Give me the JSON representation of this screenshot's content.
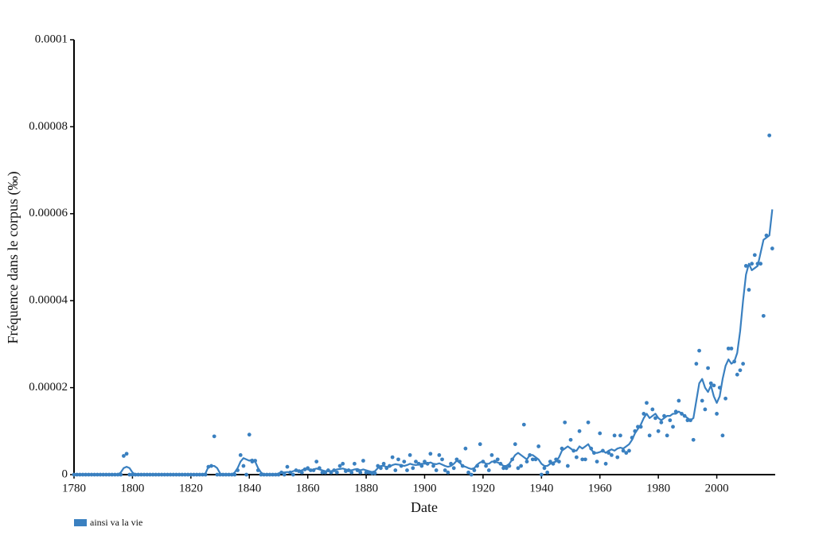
{
  "chart_data": {
    "type": "line",
    "x_label": "Date",
    "y_label": "Fréquence dans le corpus (‰)",
    "x": [
      1780,
      1781,
      1782,
      1783,
      1784,
      1785,
      1786,
      1787,
      1788,
      1789,
      1790,
      1791,
      1792,
      1793,
      1794,
      1795,
      1796,
      1797,
      1798,
      1799,
      1800,
      1801,
      1802,
      1803,
      1804,
      1805,
      1806,
      1807,
      1808,
      1809,
      1810,
      1811,
      1812,
      1813,
      1814,
      1815,
      1816,
      1817,
      1818,
      1819,
      1820,
      1821,
      1822,
      1823,
      1824,
      1825,
      1826,
      1827,
      1828,
      1829,
      1830,
      1831,
      1832,
      1833,
      1834,
      1835,
      1836,
      1837,
      1838,
      1839,
      1840,
      1841,
      1842,
      1843,
      1844,
      1845,
      1846,
      1847,
      1848,
      1849,
      1850,
      1851,
      1852,
      1853,
      1854,
      1855,
      1856,
      1857,
      1858,
      1859,
      1860,
      1861,
      1862,
      1863,
      1864,
      1865,
      1866,
      1867,
      1868,
      1869,
      1870,
      1871,
      1872,
      1873,
      1874,
      1875,
      1876,
      1877,
      1878,
      1879,
      1880,
      1881,
      1882,
      1883,
      1884,
      1885,
      1886,
      1887,
      1888,
      1889,
      1890,
      1891,
      1892,
      1893,
      1894,
      1895,
      1896,
      1897,
      1898,
      1899,
      1900,
      1901,
      1902,
      1903,
      1904,
      1905,
      1906,
      1907,
      1908,
      1909,
      1910,
      1911,
      1912,
      1913,
      1914,
      1915,
      1916,
      1917,
      1918,
      1919,
      1920,
      1921,
      1922,
      1923,
      1924,
      1925,
      1926,
      1927,
      1928,
      1929,
      1930,
      1931,
      1932,
      1933,
      1934,
      1935,
      1936,
      1937,
      1938,
      1939,
      1940,
      1941,
      1942,
      1943,
      1944,
      1945,
      1946,
      1947,
      1948,
      1949,
      1950,
      1951,
      1952,
      1953,
      1954,
      1955,
      1956,
      1957,
      1958,
      1959,
      1960,
      1961,
      1962,
      1963,
      1964,
      1965,
      1966,
      1967,
      1968,
      1969,
      1970,
      1971,
      1972,
      1973,
      1974,
      1975,
      1976,
      1977,
      1978,
      1979,
      1980,
      1981,
      1982,
      1983,
      1984,
      1985,
      1986,
      1987,
      1988,
      1989,
      1990,
      1991,
      1992,
      1993,
      1994,
      1995,
      1996,
      1997,
      1998,
      1999,
      2000,
      2001,
      2002,
      2003,
      2004,
      2005,
      2006,
      2007,
      2008,
      2009,
      2010,
      2011,
      2012,
      2013,
      2014,
      2015,
      2016,
      2017,
      2018,
      2019
    ],
    "series": [
      {
        "name": "ainsi va la vie",
        "color": "#3a80c0",
        "values": [
          0,
          0,
          0,
          0,
          0,
          0,
          0,
          0,
          0,
          0,
          0,
          0,
          0,
          0,
          0,
          0,
          0,
          4.3e-06,
          4.8e-06,
          0,
          0,
          0,
          0,
          0,
          0,
          0,
          0,
          0,
          0,
          0,
          0,
          0,
          0,
          0,
          0,
          0,
          0,
          0,
          0,
          0,
          0,
          0,
          0,
          0,
          0,
          0,
          1.8e-06,
          2e-06,
          8.8e-06,
          0,
          0,
          0,
          0,
          0,
          0,
          0,
          1e-06,
          4.5e-06,
          2e-06,
          0,
          9.2e-06,
          3e-06,
          3.2e-06,
          1e-06,
          0,
          0,
          0,
          0,
          0,
          0,
          0,
          5e-07,
          0,
          1.8e-06,
          5e-07,
          0,
          1e-06,
          8e-07,
          5e-07,
          1.2e-06,
          1.5e-06,
          1e-06,
          1e-06,
          3e-06,
          1.5e-06,
          5e-07,
          5e-07,
          1e-06,
          5e-07,
          1e-06,
          5e-07,
          2e-06,
          2.5e-06,
          8e-07,
          1e-06,
          5e-07,
          2.5e-06,
          1e-06,
          5e-07,
          3.2e-06,
          5e-07,
          5e-07,
          3e-07,
          3e-07,
          2e-06,
          1.5e-06,
          2.5e-06,
          1.5e-06,
          2e-06,
          4e-06,
          1e-06,
          3.5e-06,
          2e-06,
          3e-06,
          1e-06,
          4.5e-06,
          1.5e-06,
          3e-06,
          2.5e-06,
          2e-06,
          3e-06,
          2.5e-06,
          4.8e-06,
          2e-06,
          1e-06,
          4.5e-06,
          3.5e-06,
          1e-06,
          5e-07,
          2.5e-06,
          1.5e-06,
          3.5e-06,
          3e-06,
          2e-06,
          6e-06,
          5e-07,
          0,
          1e-06,
          2e-06,
          7e-06,
          3e-06,
          2e-06,
          1e-06,
          4.5e-06,
          3e-06,
          3.5e-06,
          2.5e-06,
          1.5e-06,
          1.5e-06,
          2e-06,
          3.5e-06,
          7e-06,
          1.5e-06,
          2e-06,
          1.15e-05,
          3e-06,
          4.5e-06,
          3.5e-06,
          3.5e-06,
          6.5e-06,
          0,
          1.5e-06,
          5e-07,
          3e-06,
          2.5e-06,
          3.5e-06,
          3e-06,
          6e-06,
          1.2e-05,
          2e-06,
          8e-06,
          5.5e-06,
          4e-06,
          1e-05,
          3.5e-06,
          3.5e-06,
          1.2e-05,
          6e-06,
          5e-06,
          3e-06,
          9.5e-06,
          5.5e-06,
          2.5e-06,
          5e-06,
          4.5e-06,
          9e-06,
          4e-06,
          9e-06,
          5.5e-06,
          5e-06,
          5.5e-06,
          8.5e-06,
          1e-05,
          1.1e-05,
          1.1e-05,
          1.4e-05,
          1.65e-05,
          9e-06,
          1.5e-05,
          1.3e-05,
          1e-05,
          1.2e-05,
          1.35e-05,
          9e-06,
          1.25e-05,
          1.1e-05,
          1.45e-05,
          1.7e-05,
          1.4e-05,
          1.35e-05,
          1.25e-05,
          1.25e-05,
          8e-06,
          2.55e-05,
          2.85e-05,
          1.7e-05,
          1.5e-05,
          2.45e-05,
          2.1e-05,
          2.05e-05,
          1.4e-05,
          2e-05,
          9e-06,
          1.75e-05,
          2.9e-05,
          2.9e-05,
          2.6e-05,
          2.3e-05,
          2.4e-05,
          2.55e-05,
          4.8e-05,
          4.25e-05,
          4.85e-05,
          5.05e-05,
          4.85e-05,
          4.85e-05,
          3.65e-05,
          5.5e-05,
          7.8e-05,
          5.2e-05
        ],
        "smoothed": [
          0,
          0,
          0,
          0,
          0,
          0,
          0,
          0,
          0,
          0,
          0,
          0,
          0,
          0,
          0,
          0,
          5e-07,
          1.5e-06,
          1.8e-06,
          1.5e-06,
          5e-07,
          0,
          0,
          0,
          0,
          0,
          0,
          0,
          0,
          0,
          0,
          0,
          0,
          0,
          0,
          0,
          0,
          0,
          0,
          0,
          0,
          0,
          0,
          0,
          0,
          3e-07,
          1.8e-06,
          2e-06,
          2e-06,
          1.5e-06,
          3e-07,
          0,
          0,
          0,
          0,
          5e-07,
          1.5e-06,
          3e-06,
          3.8e-06,
          3.5e-06,
          3.2e-06,
          3.5e-06,
          3e-06,
          1.5e-06,
          5e-07,
          0,
          0,
          0,
          0,
          0,
          3e-07,
          5e-07,
          5e-07,
          6e-07,
          5e-07,
          8e-07,
          1e-06,
          8e-07,
          1e-06,
          1.3e-06,
          1.2e-06,
          1e-06,
          1.2e-06,
          1.4e-06,
          1.2e-06,
          1e-06,
          8e-07,
          8e-07,
          8e-07,
          1e-06,
          1.2e-06,
          1.3e-06,
          1.4e-06,
          1.2e-06,
          1e-06,
          1e-06,
          1.2e-06,
          1.3e-06,
          1e-06,
          1.2e-06,
          1e-06,
          8e-07,
          6e-07,
          8e-07,
          1.5e-06,
          2e-06,
          2e-06,
          1.8e-06,
          1.8e-06,
          2.2e-06,
          2.4e-06,
          2.3e-06,
          2.2e-06,
          2e-06,
          2.2e-06,
          2.5e-06,
          2.3e-06,
          2.2e-06,
          2.3e-06,
          2.5e-06,
          2.5e-06,
          2.6e-06,
          2.8e-06,
          2.5e-06,
          2.4e-06,
          2.6e-06,
          2.3e-06,
          2e-06,
          1.8e-06,
          2e-06,
          2.5e-06,
          3.2e-06,
          2.8e-06,
          2e-06,
          1.8e-06,
          1.5e-06,
          1.3e-06,
          1.5e-06,
          2.3e-06,
          2.8e-06,
          3e-06,
          2.5e-06,
          2.5e-06,
          3e-06,
          3e-06,
          2.8e-06,
          2.5e-06,
          2e-06,
          2e-06,
          2.5e-06,
          3.5e-06,
          4.5e-06,
          5e-06,
          4.5e-06,
          4e-06,
          3.5e-06,
          4.5e-06,
          4.5e-06,
          4e-06,
          3.5e-06,
          2.5e-06,
          2e-06,
          2e-06,
          2.5e-06,
          2.8e-06,
          3e-06,
          4e-06,
          5.5e-06,
          6e-06,
          6.5e-06,
          6e-06,
          5.5e-06,
          5.5e-06,
          6.5e-06,
          6e-06,
          6.5e-06,
          7e-06,
          5.8e-06,
          5e-06,
          5e-06,
          5.2e-06,
          5.5e-06,
          5e-06,
          5.5e-06,
          5.8e-06,
          5.5e-06,
          6e-06,
          6.2e-06,
          6e-06,
          6.5e-06,
          7e-06,
          8e-06,
          9.5e-06,
          1.05e-05,
          1.15e-05,
          1.3e-05,
          1.4e-05,
          1.3e-05,
          1.35e-05,
          1.4e-05,
          1.3e-05,
          1.25e-05,
          1.3e-05,
          1.35e-05,
          1.35e-05,
          1.4e-05,
          1.4e-05,
          1.45e-05,
          1.4e-05,
          1.35e-05,
          1.3e-05,
          1.25e-05,
          1.3e-05,
          1.7e-05,
          2.1e-05,
          2.2e-05,
          2e-05,
          1.9e-05,
          2.05e-05,
          1.8e-05,
          1.65e-05,
          1.8e-05,
          2.2e-05,
          2.5e-05,
          2.65e-05,
          2.55e-05,
          2.6e-05,
          2.8e-05,
          3.3e-05,
          4e-05,
          4.6e-05,
          4.85e-05,
          4.7e-05,
          4.75e-05,
          4.8e-05,
          5.1e-05,
          5.4e-05,
          5.45e-05,
          5.5e-05,
          6.1e-05
        ]
      }
    ],
    "xlim": [
      1780,
      2020
    ],
    "xticks": [
      1780,
      1800,
      1820,
      1840,
      1860,
      1880,
      1900,
      1920,
      1940,
      1960,
      1980,
      2000
    ],
    "ylim": [
      0,
      0.0001
    ],
    "yticks": [
      0,
      2e-05,
      4e-05,
      6e-05,
      8e-05,
      0.0001
    ]
  }
}
